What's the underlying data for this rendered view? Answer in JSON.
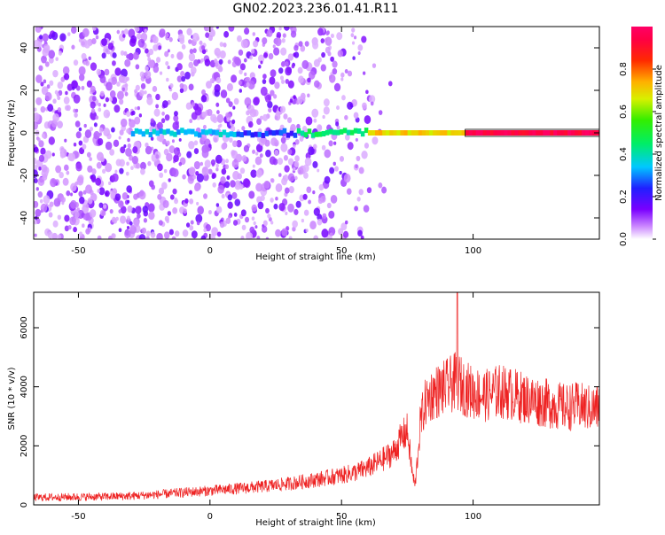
{
  "figure": {
    "title": "GN02.2023.236.01.41.R11"
  },
  "chart_data": [
    {
      "type": "heatmap",
      "title": "GN02.2023.236.01.41.R11",
      "xlabel": "Height of straight line (km)",
      "ylabel": "Frequency (Hz)",
      "xlim": [
        -67,
        148
      ],
      "ylim": [
        -50,
        50
      ],
      "x_ticks": [
        -50,
        0,
        50,
        100
      ],
      "y_ticks": [
        -40,
        -20,
        0,
        20,
        40
      ],
      "colorbar": {
        "label": "Normalized spectral amplitude",
        "range": [
          0,
          1
        ],
        "ticks": [
          0.0,
          0.2,
          0.4,
          0.6,
          0.8
        ],
        "colormap": "rainbow (white -> purple -> blue -> cyan -> green -> yellow -> red -> magenta)"
      },
      "ridge": {
        "frequency_hz": 0,
        "segments": [
          {
            "x_from": -30,
            "x_to": 10,
            "amplitude": 0.35
          },
          {
            "x_from": 10,
            "x_to": 33,
            "amplitude": 0.25
          },
          {
            "x_from": 33,
            "x_to": 60,
            "amplitude": 0.45
          },
          {
            "x_from": 60,
            "x_to": 97,
            "amplitude": 0.7
          },
          {
            "x_from": 97,
            "x_to": 148,
            "amplitude": 0.95
          }
        ]
      },
      "noise_region": {
        "x_from": -67,
        "x_to": 60,
        "amplitude": "0.05-0.2"
      }
    },
    {
      "type": "line",
      "xlabel": "Height of straight line (km)",
      "ylabel": "SNR (10 * v/v)",
      "xlim": [
        -67,
        148
      ],
      "ylim": [
        0,
        7200
      ],
      "x_ticks": [
        -50,
        0,
        50,
        100
      ],
      "y_ticks": [
        0,
        2000,
        4000,
        6000
      ],
      "color": "#ee2222",
      "series": [
        {
          "x": [
            -67,
            -60,
            -50,
            -40,
            -30,
            -20,
            -10,
            0,
            10,
            20,
            30,
            40,
            50,
            55,
            60,
            65,
            70,
            73,
            75,
            77,
            78,
            80,
            82,
            85,
            88,
            90,
            92,
            94,
            96,
            100,
            105,
            110,
            115,
            120,
            125,
            130,
            135,
            140,
            145,
            148
          ],
          "values": [
            250,
            260,
            270,
            280,
            300,
            350,
            420,
            480,
            550,
            620,
            720,
            850,
            1000,
            1100,
            1250,
            1500,
            1800,
            2300,
            2500,
            1000,
            650,
            2800,
            3500,
            3800,
            3900,
            4000,
            4100,
            4200,
            4000,
            3800,
            3700,
            3850,
            3750,
            3600,
            3500,
            3400,
            3300,
            3350,
            3250,
            3300
          ],
          "spike": {
            "x": 94,
            "value": 7200
          }
        }
      ]
    }
  ],
  "colors": {
    "line": "#ee2222",
    "axis": "#000000"
  }
}
